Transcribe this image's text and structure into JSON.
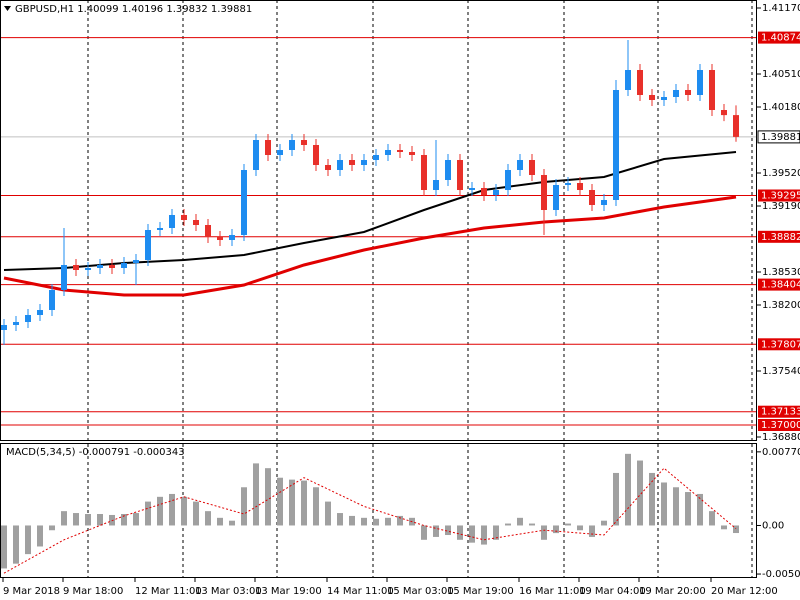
{
  "chart_data": [
    {
      "type": "candlestick",
      "title": "GBPUSD,H1",
      "categories": [
        "9 Mar 2018",
        null,
        null,
        null,
        null,
        "9 Mar 18:00",
        null,
        null,
        null,
        null,
        null,
        "12 Mar 11:00",
        null,
        null,
        null,
        null,
        "13 Mar 03:00",
        null,
        null,
        null,
        null,
        "13 Mar 19:00",
        null,
        null,
        null,
        null,
        null,
        "14 Mar 11:00",
        null,
        null,
        null,
        null,
        "15 Mar 03:00",
        null,
        null,
        null,
        null,
        "15 Mar 19:00",
        null,
        null,
        null,
        null,
        null,
        "16 Mar 11:00",
        null,
        null,
        null,
        null,
        "19 Mar 04:00",
        null,
        null,
        null,
        null,
        "19 Mar 20:00",
        null,
        null,
        null,
        null,
        null,
        "20 Mar 12:00",
        null,
        null
      ],
      "open": [
        1.3795,
        1.38,
        1.3803,
        1.381,
        1.3815,
        1.3835,
        1.386,
        1.3855,
        1.3857,
        1.386,
        1.3857,
        1.3862,
        1.3865,
        1.3895,
        1.3897,
        1.391,
        1.3905,
        1.39,
        1.3888,
        1.3885,
        1.389,
        1.3955,
        1.3985,
        1.397,
        1.3975,
        1.3985,
        1.398,
        1.396,
        1.3955,
        1.3965,
        1.396,
        1.3965,
        1.397,
        1.3975,
        1.3973,
        1.397,
        1.3935,
        1.3945,
        1.3965,
        1.3935,
        1.3937,
        1.393,
        1.3935,
        1.3955,
        1.3965,
        1.395,
        1.3915,
        1.394,
        1.3942,
        1.3935,
        1.392,
        1.3925,
        1.4035,
        1.4055,
        1.403,
        1.4025,
        1.4028,
        1.4035,
        1.403,
        1.4055,
        1.4015,
        1.40099
      ],
      "high": [
        1.3806,
        1.3809,
        1.3816,
        1.3821,
        1.3841,
        1.3897,
        1.3866,
        1.3863,
        1.3866,
        1.3866,
        1.3868,
        1.3871,
        1.3901,
        1.3903,
        1.3916,
        1.3916,
        1.3911,
        1.3906,
        1.3894,
        1.3896,
        1.3961,
        1.3991,
        1.3991,
        1.3981,
        1.3991,
        1.3991,
        1.3986,
        1.3966,
        1.3971,
        1.3971,
        1.3971,
        1.3976,
        1.3981,
        1.3981,
        1.3979,
        1.3976,
        1.3985,
        1.3971,
        1.3971,
        1.3943,
        1.3943,
        1.3941,
        1.3961,
        1.3971,
        1.3971,
        1.3956,
        1.3946,
        1.3948,
        1.3948,
        1.3941,
        1.3931,
        1.4045,
        1.4085,
        1.4061,
        1.4036,
        1.4034,
        1.4041,
        1.4041,
        1.4061,
        1.4061,
        1.4021,
        1.40196
      ],
      "low": [
        1.378,
        1.3794,
        1.3797,
        1.3804,
        1.3809,
        1.3829,
        1.3849,
        1.3849,
        1.3851,
        1.3851,
        1.3851,
        1.384,
        1.3859,
        1.3889,
        1.3891,
        1.3899,
        1.3894,
        1.3882,
        1.3879,
        1.3879,
        1.3884,
        1.3949,
        1.3964,
        1.3964,
        1.3969,
        1.3974,
        1.3954,
        1.3949,
        1.3949,
        1.3954,
        1.3954,
        1.3959,
        1.3964,
        1.3967,
        1.3964,
        1.3929,
        1.3929,
        1.3939,
        1.3929,
        1.3929,
        1.3924,
        1.3924,
        1.3929,
        1.3949,
        1.3944,
        1.389,
        1.3909,
        1.3934,
        1.3929,
        1.3914,
        1.3914,
        1.3919,
        1.4029,
        1.4024,
        1.4019,
        1.4019,
        1.4022,
        1.4024,
        1.4024,
        1.4009,
        1.40039,
        1.39832
      ],
      "close": [
        1.38,
        1.3803,
        1.381,
        1.3815,
        1.3835,
        1.386,
        1.3855,
        1.3857,
        1.386,
        1.3857,
        1.3862,
        1.3865,
        1.3895,
        1.3897,
        1.391,
        1.3905,
        1.39,
        1.3888,
        1.3885,
        1.389,
        1.3955,
        1.3985,
        1.397,
        1.3975,
        1.3985,
        1.398,
        1.396,
        1.3955,
        1.3965,
        1.396,
        1.3965,
        1.397,
        1.3975,
        1.3973,
        1.397,
        1.3935,
        1.3945,
        1.3965,
        1.3935,
        1.3937,
        1.393,
        1.3935,
        1.3955,
        1.3965,
        1.395,
        1.3915,
        1.394,
        1.3942,
        1.3935,
        1.392,
        1.3925,
        1.4035,
        1.4055,
        1.403,
        1.4025,
        1.4028,
        1.4035,
        1.403,
        1.4055,
        1.4015,
        1.40099,
        1.39881
      ],
      "up_color": "#1e8cf0",
      "down_color": "#e8302a",
      "overlays": [
        {
          "color": "#000000",
          "x": [
            0,
            5,
            10,
            15,
            20,
            25,
            30,
            35,
            40,
            45,
            50,
            55,
            61
          ],
          "values": [
            1.3855,
            1.3857,
            1.3862,
            1.3865,
            1.387,
            1.3882,
            1.3893,
            1.3915,
            1.3935,
            1.3943,
            1.3948,
            1.3966,
            1.3973
          ]
        },
        {
          "color": "#e00000",
          "x": [
            0,
            5,
            10,
            15,
            20,
            25,
            30,
            35,
            40,
            45,
            50,
            55,
            61
          ],
          "values": [
            1.3847,
            1.3835,
            1.383,
            1.383,
            1.384,
            1.386,
            1.3875,
            1.3887,
            1.3897,
            1.3903,
            1.3907,
            1.3918,
            1.3928
          ]
        }
      ],
      "levels": [
        1.40874,
        1.39295,
        1.38882,
        1.38404,
        1.37807,
        1.37133,
        {
          "value": 1.37,
          "label": "1.37000"
        }
      ],
      "level_color": "#e00000",
      "ylim": [
        1.3685,
        1.4125
      ],
      "yticks": [
        {
          "value": 1.4117,
          "label": "1.41170"
        },
        {
          "value": 1.4051,
          "label": "1.40510"
        },
        {
          "value": 1.4018,
          "label": "1.40180"
        },
        {
          "value": 1.3952,
          "label": "1.39520"
        },
        {
          "value": 1.3919,
          "label": "1.39190"
        },
        {
          "value": 1.3853,
          "label": "1.38530"
        },
        {
          "value": 1.382,
          "label": "1.38200"
        },
        {
          "value": 1.3754,
          "label": "1.37540"
        },
        {
          "value": 1.3688,
          "label": "1.36880"
        }
      ]
    },
    {
      "type": "macd",
      "title": "MACD(5,34,5)",
      "values": [
        -0.0045,
        -0.004,
        -0.003,
        -0.0022,
        -0.0005,
        0.0015,
        0.0013,
        0.0012,
        0.0012,
        0.0011,
        0.0012,
        0.0013,
        0.0025,
        0.003,
        0.0033,
        0.003,
        0.0025,
        0.0015,
        0.0008,
        0.0005,
        0.004,
        0.0065,
        0.006,
        0.005,
        0.0048,
        0.0047,
        0.004,
        0.0025,
        0.0013,
        0.001,
        0.0008,
        0.0007,
        0.0008,
        0.001,
        0.0008,
        -0.0015,
        -0.0012,
        -0.001,
        -0.0015,
        -0.0018,
        -0.002,
        -0.0015,
        0.0002,
        0.0008,
        0.0002,
        -0.0015,
        -0.0008,
        0.0002,
        -0.0005,
        -0.0012,
        0.0005,
        0.0055,
        0.0075,
        0.0068,
        0.0055,
        0.0045,
        0.004,
        0.0035,
        0.0033,
        0.0015,
        -0.0004,
        -0.000791
      ],
      "color": "#a0a0a0",
      "signal": {
        "color": "#e00000",
        "x": [
          0,
          5,
          10,
          15,
          20,
          25,
          30,
          35,
          40,
          45,
          50,
          55,
          61
        ],
        "values": [
          -0.005,
          -0.0015,
          0.001,
          0.003,
          0.0012,
          0.005,
          0.002,
          0,
          -0.0015,
          -0.0005,
          -0.001,
          0.006,
          -0.000343
        ]
      },
      "ylim": [
        -0.0055,
        0.00853
      ],
      "yticks": [
        0.007708,
        {
          "value": 0,
          "label": "0.00"
        },
        -0.005085
      ]
    }
  ]
}
